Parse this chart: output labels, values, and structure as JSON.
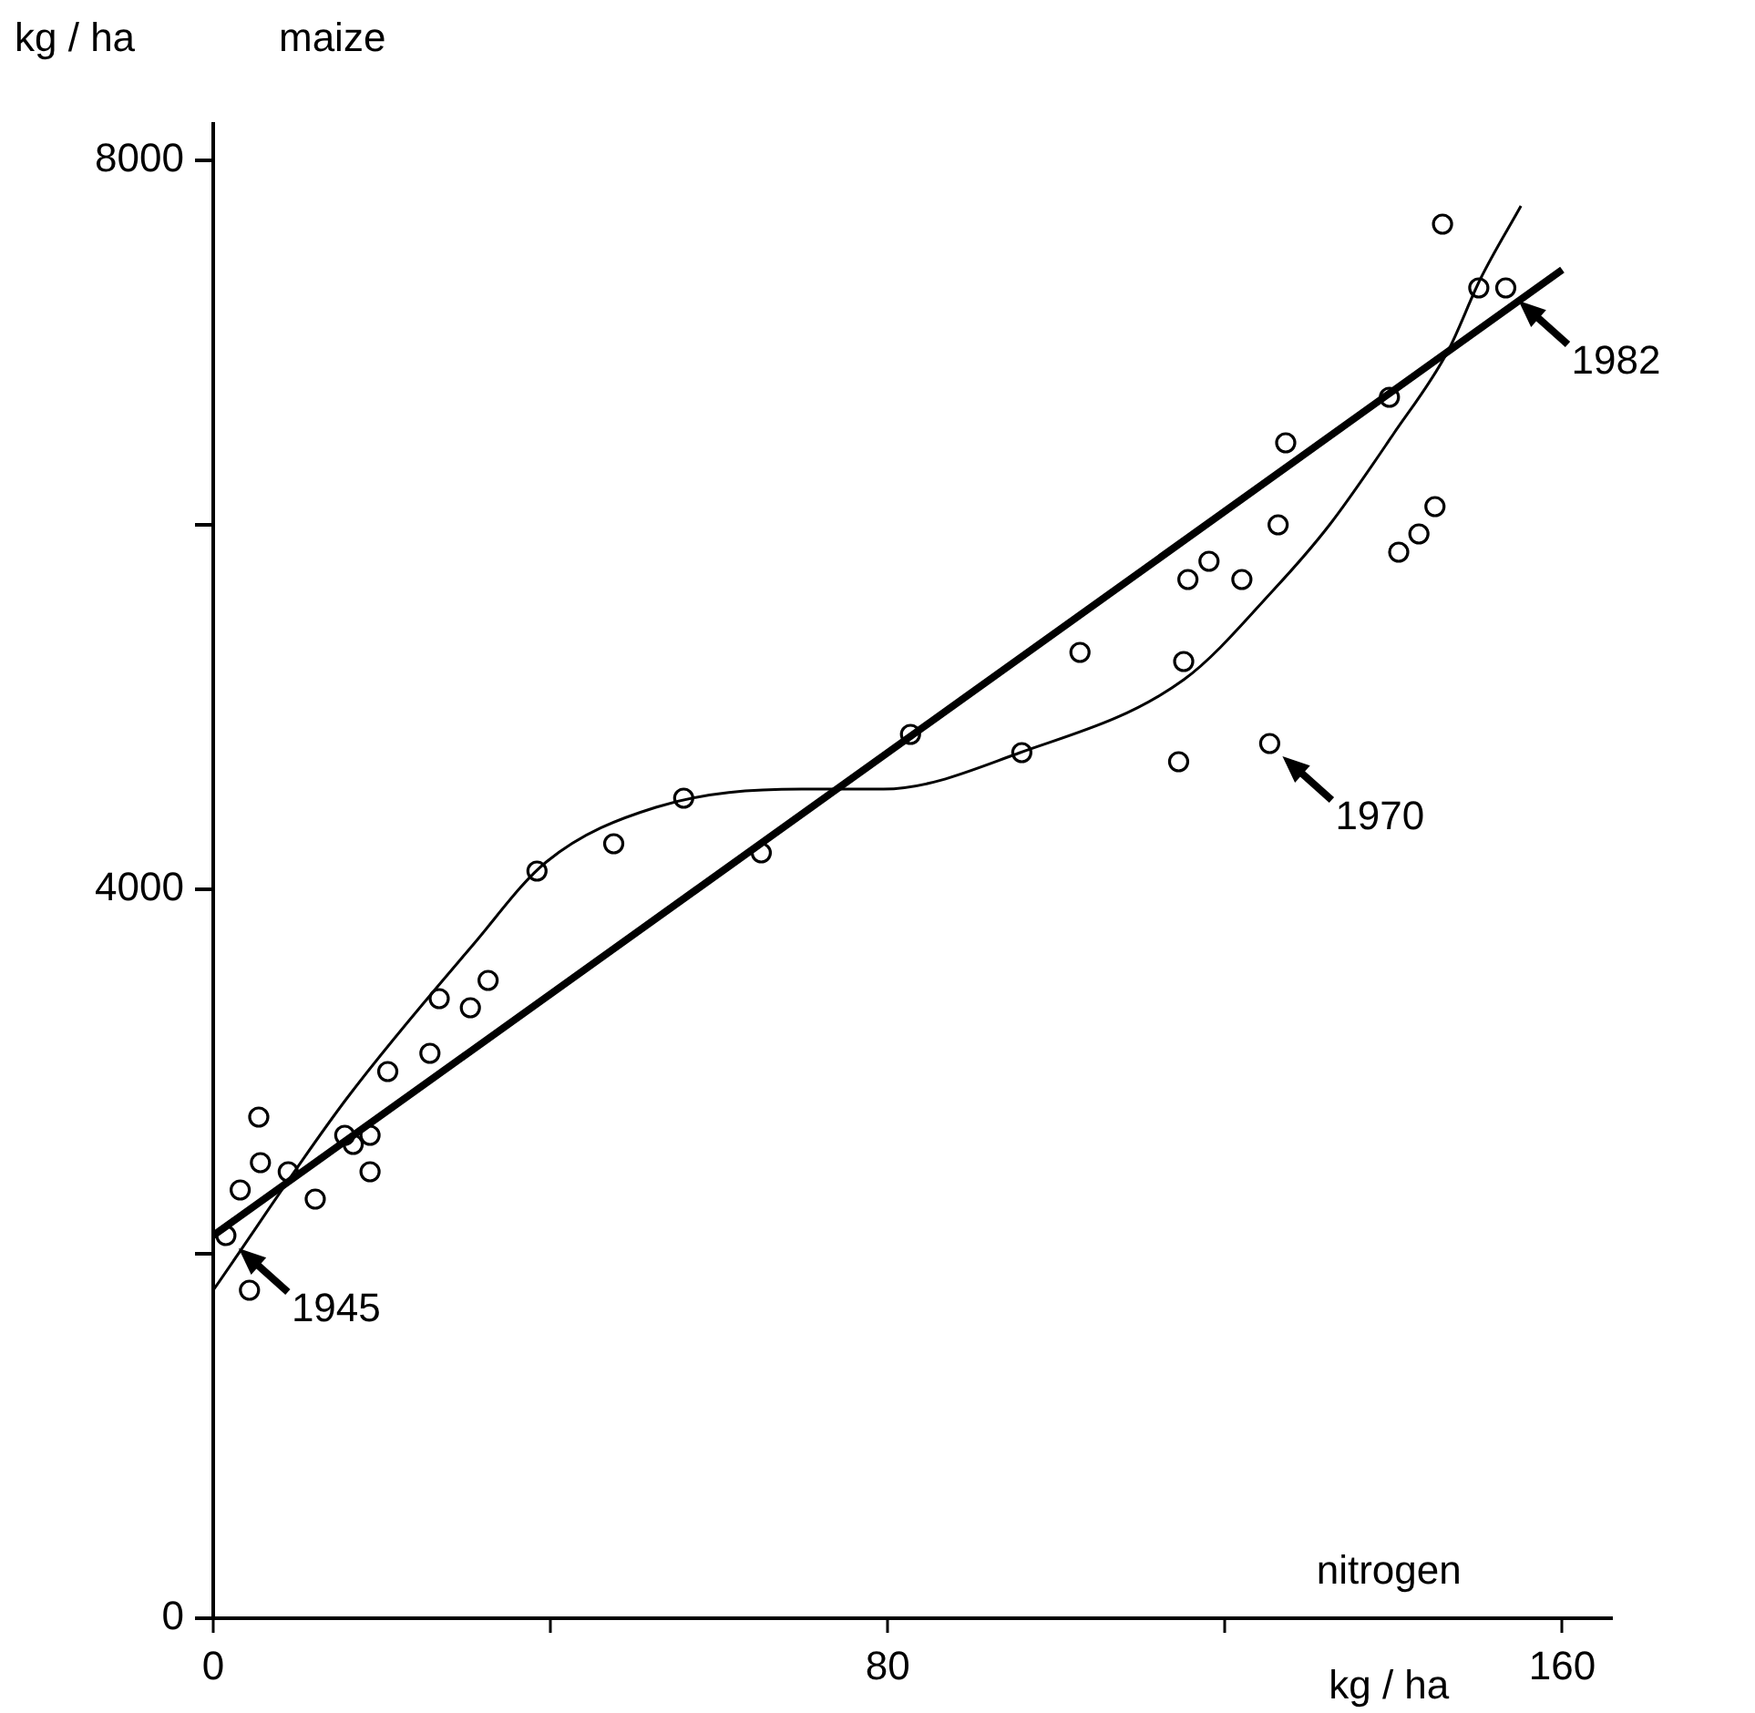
{
  "chart_data": {
    "type": "scatter",
    "title": "maize",
    "ylabel": "kg / ha",
    "xlabel": "kg / ha",
    "marker": "circle",
    "legend": false,
    "xlim": [
      0,
      166
    ],
    "ylim": [
      0,
      8200
    ],
    "xticks": [
      0,
      {
        "value": 40,
        "label": null
      },
      80,
      {
        "value": 120,
        "label": null
      },
      160
    ],
    "yticks": [
      0,
      {
        "value": 2000,
        "label": null
      },
      4000,
      {
        "value": 6000,
        "label": null
      },
      8000
    ],
    "annotations": [
      "nitrogen",
      {
        "text": "1945",
        "x": 1.5,
        "y": 2100
      },
      {
        "text": "1970",
        "x": 125.3,
        "y": 4800
      },
      {
        "text": "1982",
        "x": 153.3,
        "y": 7300
      }
    ],
    "series": [
      {
        "color": "#000000",
        "x": [
          1.5,
          4.3,
          3.2,
          5.6,
          5.4,
          8.9,
          12.1,
          15.6,
          16.6,
          18.6,
          18.6,
          20.7,
          25.7,
          26.8,
          30.5,
          32.6,
          38.4,
          47.5,
          55.8,
          65,
          82.7,
          95.9,
          102.8,
          115.6,
          118.1,
          122,
          126.3,
          115.1,
          114.5,
          125.3,
          145.8,
          150.1,
          153.3,
          139.5,
          127.2,
          140.6,
          143,
          144.9
        ],
        "values": [
          2100,
          1800,
          2350,
          2500,
          2750,
          2450,
          2300,
          2650,
          2600,
          2650,
          2450,
          3000,
          3100,
          3400,
          3350,
          3500,
          4100,
          4250,
          4500,
          4200,
          4850,
          4750,
          5300,
          5700,
          5800,
          5700,
          6000,
          5250,
          4700,
          4800,
          7650,
          7300,
          7300,
          6700,
          6450,
          5850,
          5950,
          6100
        ]
      },
      {
        "type": "line",
        "color": "#000000",
        "marker": "none",
        "line_style": "solid",
        "x": [
          0,
          160
        ],
        "values": [
          2100,
          7400
        ]
      },
      {
        "type": "line",
        "color": "#000000",
        "marker": "none",
        "line_style": "solid",
        "x": [
          0,
          15.8,
          30.9,
          39.5,
          52.5,
          69.8,
          79.5,
          95.7,
          115.1,
          125.9,
          132.4,
          140,
          146.4,
          150.3,
          155.1
        ],
        "values": [
          1800,
          2850,
          3700,
          4150,
          4450,
          4550,
          4550,
          4750,
          5150,
          5650,
          6000,
          6500,
          6950,
          7350,
          7750
        ]
      }
    ]
  }
}
